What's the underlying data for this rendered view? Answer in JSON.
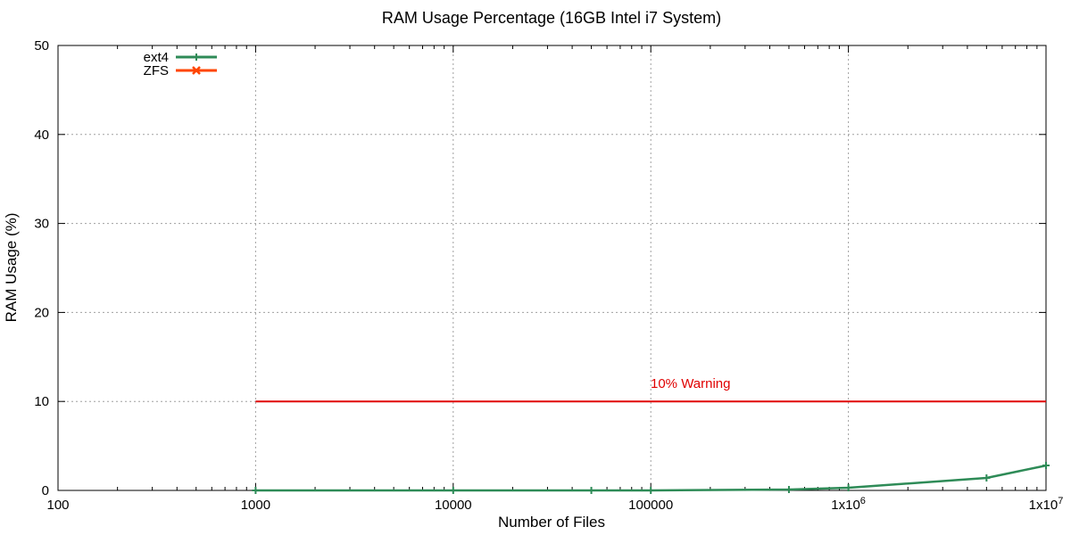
{
  "chart_data": {
    "type": "line",
    "title": "RAM Usage Percentage (16GB Intel i7 System)",
    "xlabel": "Number of Files",
    "ylabel": "RAM Usage (%)",
    "xscale": "log",
    "xlim": [
      100,
      10000000
    ],
    "ylim": [
      0,
      50
    ],
    "grid": true,
    "legend": "top-left",
    "x_ticks": [
      {
        "value": 100,
        "label": "100"
      },
      {
        "value": 1000,
        "label": "1000"
      },
      {
        "value": 10000,
        "label": "10000"
      },
      {
        "value": 100000,
        "label": "100000"
      },
      {
        "value": 1000000,
        "label": "1x10",
        "exp": "6"
      },
      {
        "value": 10000000,
        "label": "1x10",
        "exp": "7"
      }
    ],
    "y_ticks": [
      {
        "value": 0,
        "label": "0"
      },
      {
        "value": 10,
        "label": "10"
      },
      {
        "value": 20,
        "label": "20"
      },
      {
        "value": 30,
        "label": "30"
      },
      {
        "value": 40,
        "label": "40"
      },
      {
        "value": 50,
        "label": "50"
      }
    ],
    "series": [
      {
        "name": "ext4",
        "color": "#2e8b57",
        "marker": "plus",
        "x": [
          1000,
          10000,
          50000,
          100000,
          500000,
          1000000,
          5000000,
          10000000
        ],
        "y": [
          0.0,
          0.0,
          0.0,
          0.0,
          0.1,
          0.3,
          1.4,
          2.8
        ]
      },
      {
        "name": "ZFS",
        "color": "#ff4500",
        "marker": "cross",
        "x": [],
        "y": []
      }
    ],
    "threshold": {
      "label": "10% Warning",
      "value": 10,
      "x_from": 1000,
      "x_to": 10000000,
      "color": "#e00000"
    }
  }
}
